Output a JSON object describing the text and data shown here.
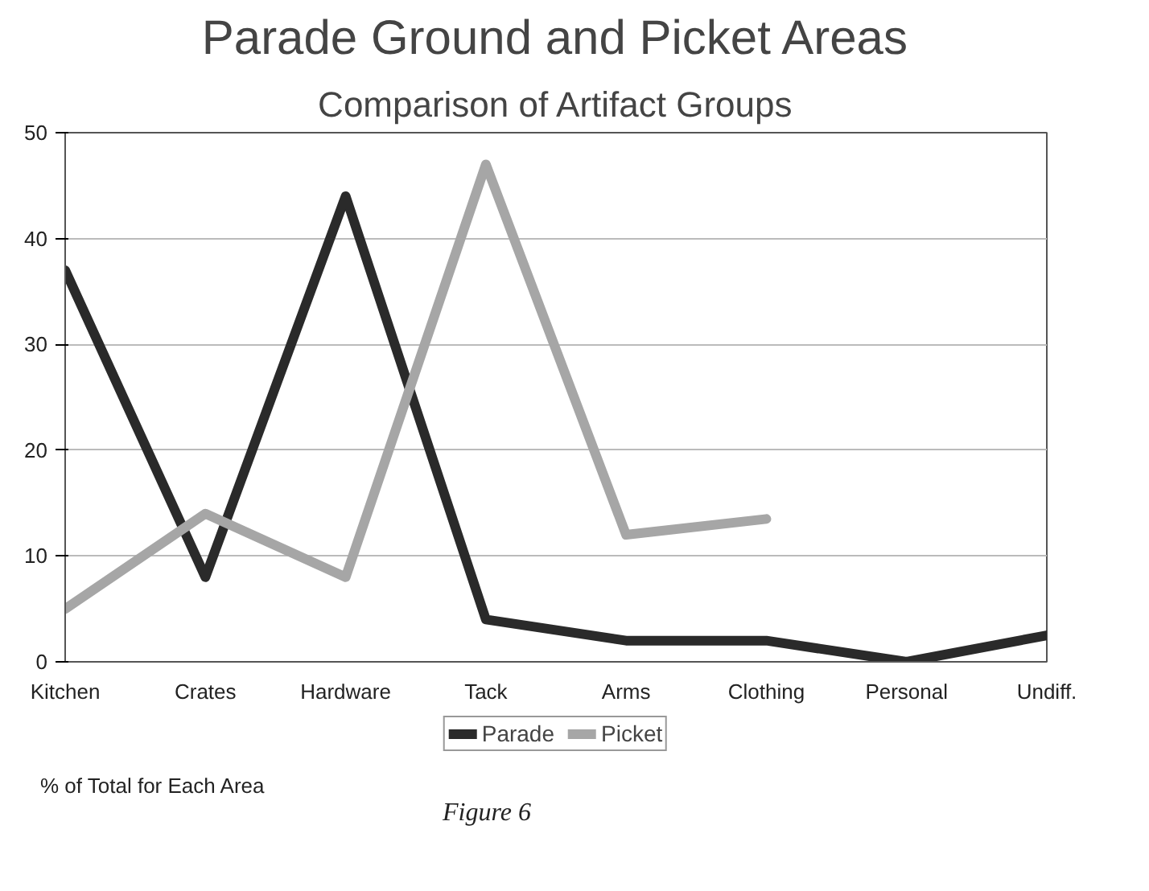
{
  "chart_data": {
    "type": "line",
    "title": "Parade Ground and Picket Areas",
    "subtitle": "Comparison of Artifact Groups",
    "categories": [
      "Kitchen",
      "Crates",
      "Hardware",
      "Tack",
      "Arms",
      "Clothing",
      "Personal",
      "Undiff."
    ],
    "series": [
      {
        "name": "Parade",
        "color": "#2a2a2a",
        "values": [
          37,
          8,
          44,
          4,
          2,
          2,
          0,
          2.5
        ]
      },
      {
        "name": "Picket",
        "color": "#a6a6a6",
        "values": [
          5,
          14,
          8,
          47,
          12,
          13.5,
          null,
          null
        ]
      }
    ],
    "ylim": [
      0,
      50
    ],
    "yticks": [
      0,
      10,
      20,
      30,
      40,
      50
    ],
    "grid": "y",
    "legend": "bottom",
    "line_style": "solid",
    "annotations": [
      "% of Total for Each Area",
      "Figure 6"
    ]
  }
}
